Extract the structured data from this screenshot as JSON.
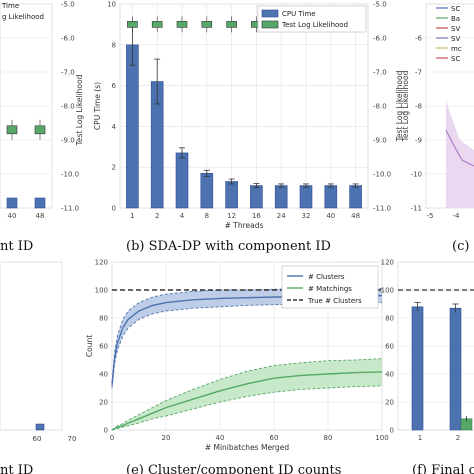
{
  "colors": {
    "blue": "#4c72b0",
    "blue_dark": "#2d4f95",
    "green": "#55a868",
    "green_light": "#b6e0b8",
    "grid": "#e2e2e8",
    "panel_bg": "#ffffff",
    "purple": "#b07cc6",
    "dash": "#333333"
  },
  "captions": {
    "a": "nt ID",
    "b": "(b) SDA-DP with component ID",
    "c": "(c) ",
    "d": "nt ID",
    "e": "(e) Cluster/component ID counts",
    "f": "(f) Final c"
  },
  "chart_data": [
    {
      "id": "panel_a_partial",
      "type": "bar",
      "categories": [
        "40",
        "48"
      ],
      "right_ticks": [
        "-5.0",
        "-6.0",
        "-7.0",
        "-8.0",
        "-9.0",
        "-10.0",
        "-11.0"
      ],
      "right_ylabel": "Test Log Likelihood",
      "legend": [
        "Time",
        "g Likelihood"
      ],
      "ylim_right": [
        -11.0,
        -5.0
      ],
      "box_medians": [
        -8.7,
        -8.7
      ]
    },
    {
      "id": "panel_b",
      "type": "bar",
      "title": "(b) SDA-DP with component ID",
      "categories": [
        "1",
        "2",
        "4",
        "8",
        "12",
        "16",
        "24",
        "32",
        "40",
        "48"
      ],
      "xlabel": "# Threads",
      "ylabel_left": "CPU Time (s)",
      "ylabel_right": "Test Log Likelihood",
      "ylim_left": [
        0,
        10
      ],
      "left_ticks": [
        "0",
        "2",
        "4",
        "6",
        "8",
        "10"
      ],
      "ylim_right": [
        -11.0,
        -5.0
      ],
      "right_ticks": [
        "-5.0",
        "-6.0",
        "-7.0",
        "-8.0",
        "-9.0",
        "-10.0",
        "-11.0"
      ],
      "series": [
        {
          "name": "CPU Time",
          "values": [
            8.0,
            6.2,
            2.7,
            1.7,
            1.3,
            1.1,
            1.1,
            1.1,
            1.1,
            1.1
          ],
          "errors": [
            1.0,
            1.1,
            0.25,
            0.15,
            0.12,
            0.1,
            0.08,
            0.08,
            0.08,
            0.08
          ]
        },
        {
          "name": "Test Log Likelihood",
          "medians": [
            -5.6,
            -5.6,
            -5.6,
            -5.6,
            -5.6,
            -5.6,
            -5.6,
            -5.6,
            -5.6,
            -5.6
          ]
        }
      ]
    },
    {
      "id": "panel_c_partial",
      "type": "line",
      "left_ticks": [
        "-6",
        "-7",
        "-8",
        "-9",
        "-10",
        "-11"
      ],
      "x_ticks": [
        "-5",
        "-4"
      ],
      "ylim": [
        -11,
        -5
      ],
      "legend": [
        "SC",
        "Ba",
        "SV",
        "SV",
        "mc",
        "SC"
      ],
      "ylabel": "Test Log Likelihood"
    },
    {
      "id": "panel_d_partial",
      "type": "bar",
      "x_ticks": [
        "60",
        "70"
      ]
    },
    {
      "id": "panel_e",
      "type": "line",
      "title": "(e) Cluster/component ID counts",
      "xlabel": "# Minibatches Merged",
      "ylabel": "Count",
      "xlim": [
        0,
        100
      ],
      "ylim": [
        0,
        120
      ],
      "x_ticks": [
        "0",
        "20",
        "40",
        "60",
        "80",
        "100"
      ],
      "y_ticks": [
        "0",
        "20",
        "40",
        "60",
        "80",
        "100",
        "120"
      ],
      "x": [
        0,
        1,
        2,
        4,
        6,
        10,
        15,
        20,
        30,
        40,
        50,
        60,
        70,
        80,
        90,
        100
      ],
      "series": [
        {
          "name": "# Clusters",
          "values": [
            32,
            52,
            62,
            73,
            79,
            85,
            89,
            91,
            93,
            94,
            94.5,
            95,
            95,
            95.5,
            95.5,
            96
          ],
          "lower": [
            30,
            48,
            57,
            67,
            73,
            79,
            83,
            85,
            87,
            88,
            89,
            89.5,
            90,
            90,
            90.5,
            91
          ],
          "upper": [
            34,
            56,
            67,
            79,
            85,
            91,
            95,
            97,
            99,
            100,
            100,
            100.5,
            101,
            101,
            101,
            101
          ]
        },
        {
          "name": "# Matchings",
          "values": [
            0,
            1,
            2,
            3,
            5,
            8,
            12,
            16,
            22,
            28,
            33,
            37,
            39,
            40,
            41,
            41.5
          ],
          "lower": [
            0,
            0.5,
            1,
            2,
            3,
            5,
            8,
            10,
            15,
            20,
            24,
            27,
            29,
            30,
            31,
            31.5
          ],
          "upper": [
            0,
            1.5,
            3,
            4.5,
            7,
            11,
            16,
            21,
            29,
            36,
            42,
            46,
            48,
            49.5,
            50,
            51
          ]
        },
        {
          "name": "True # Clusters",
          "values": [
            100,
            100
          ],
          "x": [
            0,
            100
          ]
        }
      ]
    },
    {
      "id": "panel_f_partial",
      "type": "bar",
      "title": "(f) Final c",
      "categories": [
        "1",
        "2"
      ],
      "ylim": [
        0,
        120
      ],
      "y_ticks": [
        "0",
        "20",
        "40",
        "60",
        "80",
        "100",
        "120"
      ],
      "series": [
        {
          "name": "blue",
          "values": [
            88,
            87
          ],
          "errors": [
            3,
            3
          ]
        },
        {
          "name": "green",
          "values": [
            0,
            8
          ],
          "errors": [
            0,
            2
          ]
        }
      ],
      "true_line": 100
    }
  ]
}
